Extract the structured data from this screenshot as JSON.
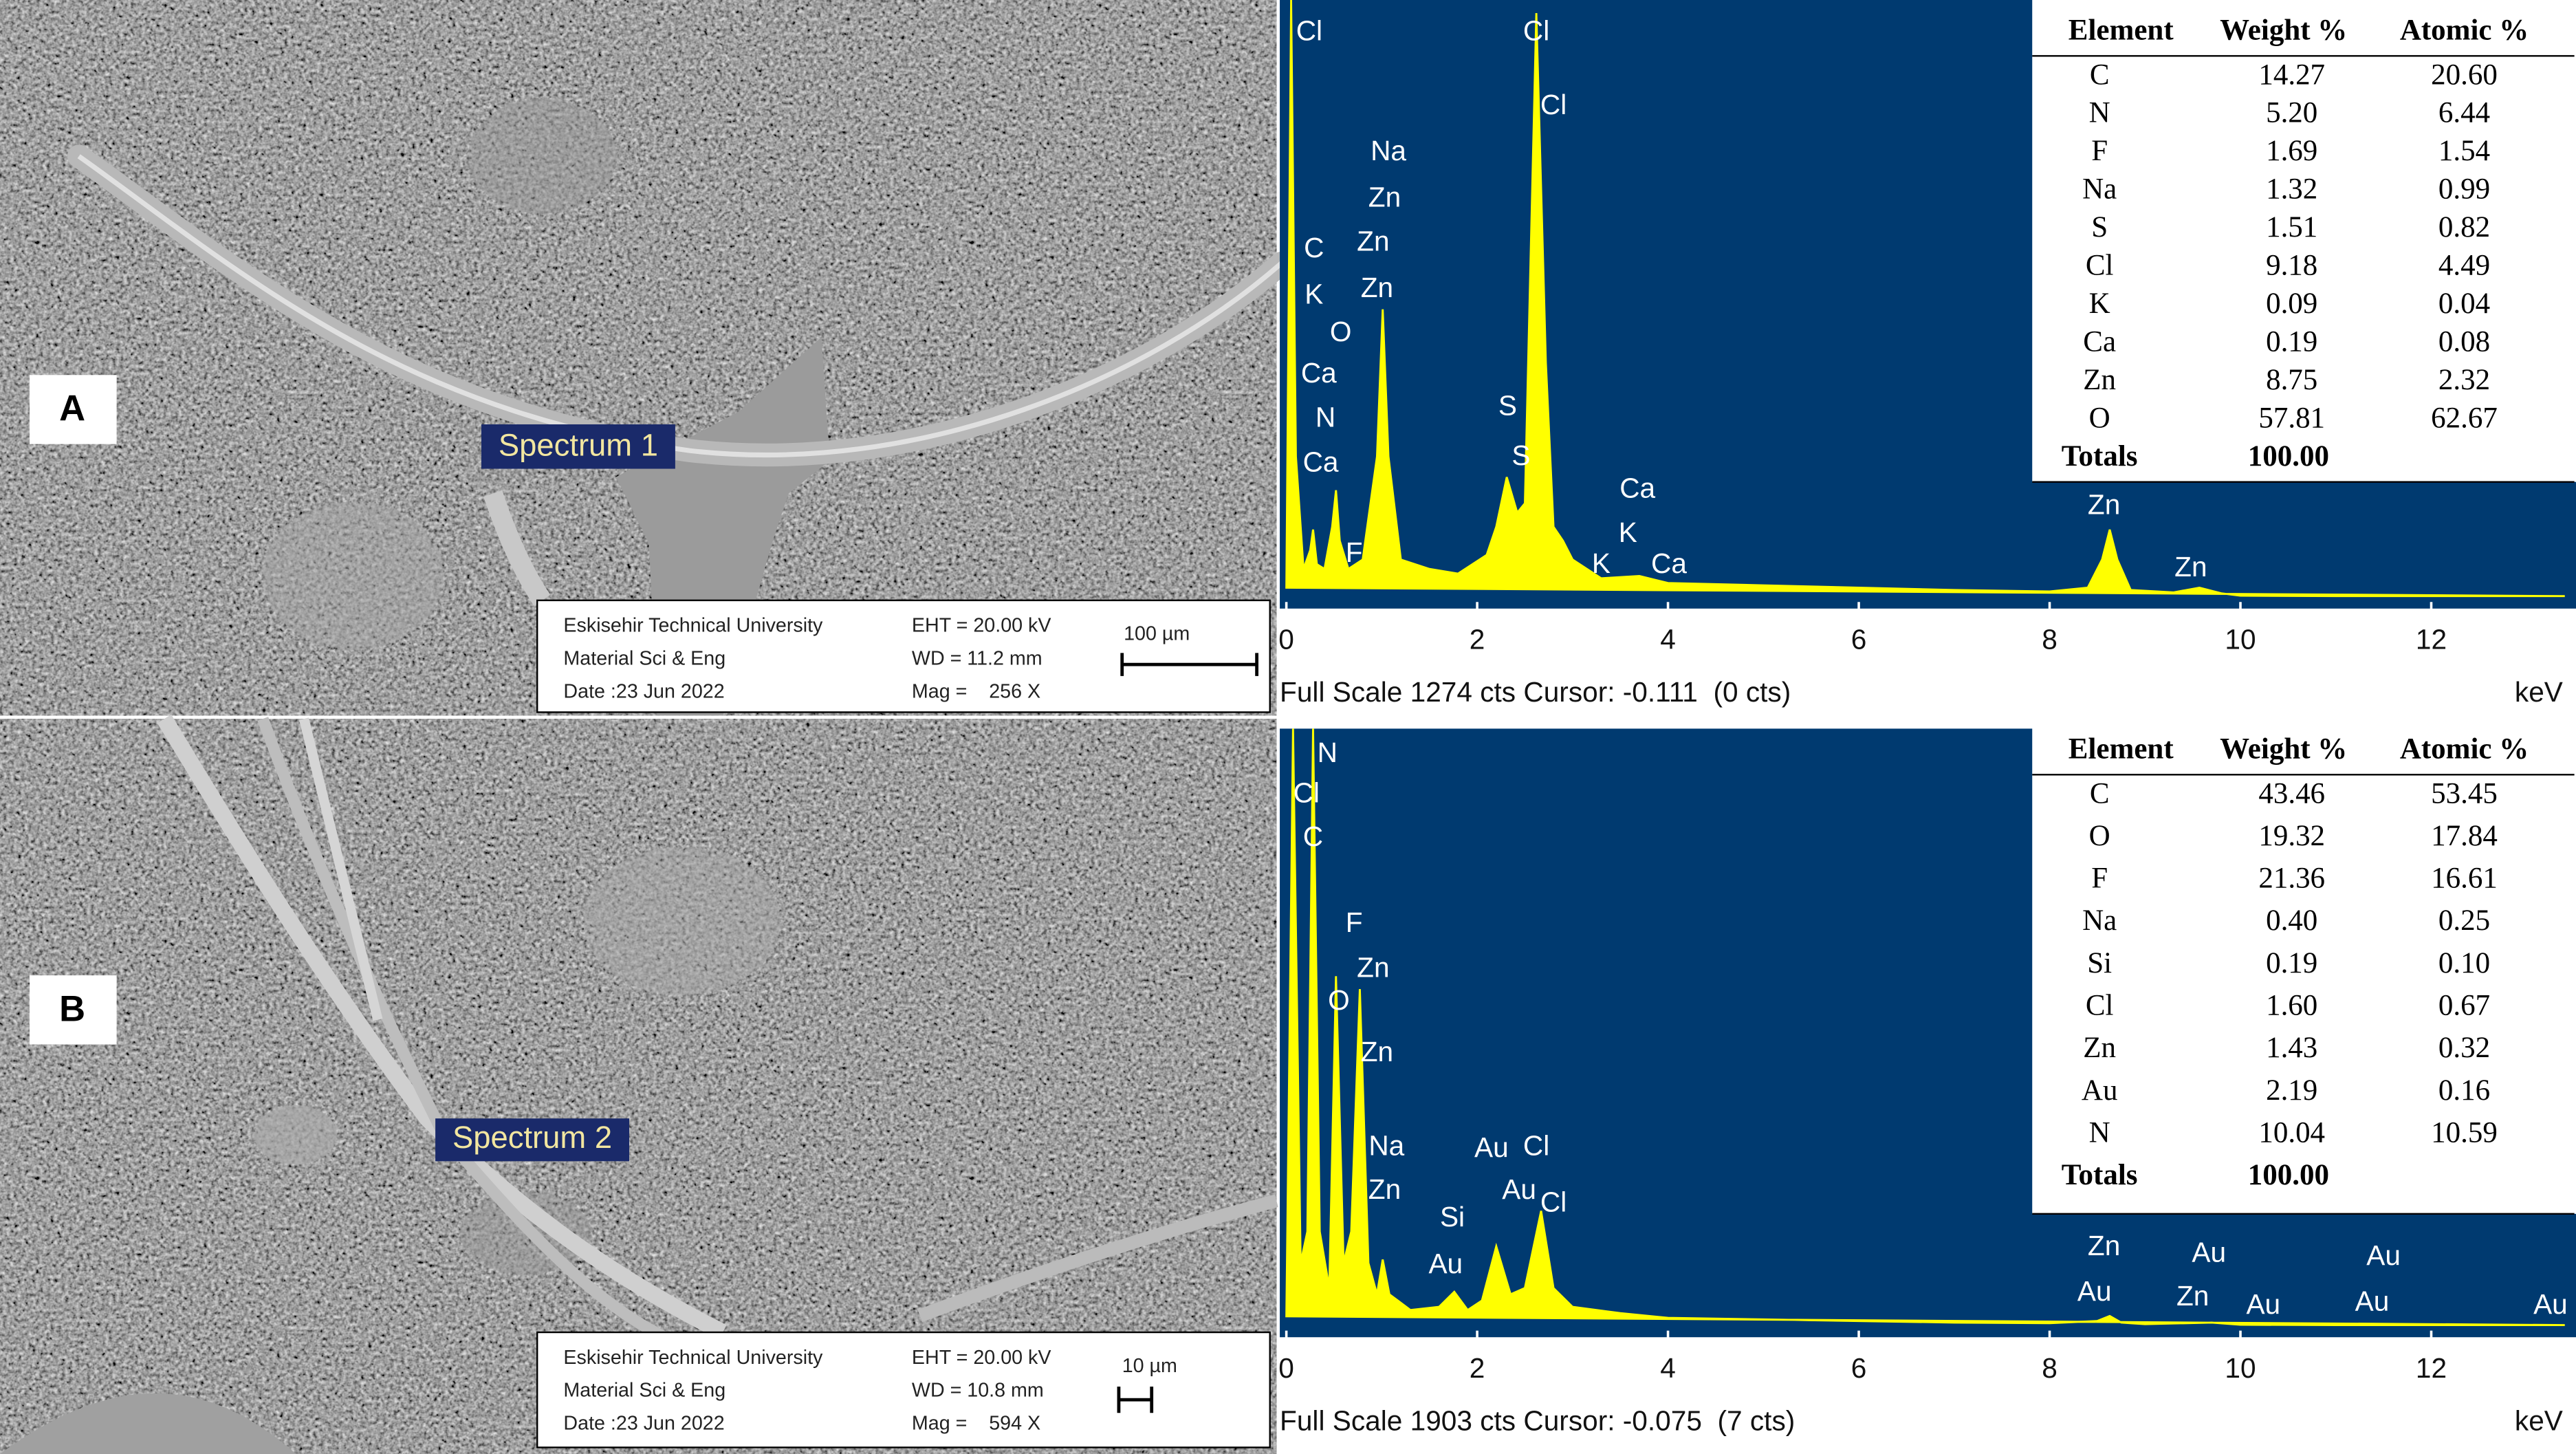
{
  "chart_data": [
    {
      "type": "area",
      "color": "#ffff00",
      "background": "#003a70",
      "x": [
        0,
        0.05,
        0.1,
        0.18,
        0.25,
        0.28,
        0.32,
        0.4,
        0.48,
        0.52,
        0.56,
        0.65,
        0.8,
        0.95,
        1.01,
        1.07,
        1.2,
        1.5,
        1.8,
        2.1,
        2.2,
        2.31,
        2.42,
        2.5,
        2.62,
        2.72,
        2.8,
        2.9,
        3.0,
        3.3,
        3.7,
        4.0,
        5,
        6,
        7,
        8,
        8.4,
        8.55,
        8.63,
        8.71,
        8.85,
        9.3,
        9.57,
        9.8,
        10,
        11,
        12,
        13.4
      ],
      "values": [
        20,
        1274,
        300,
        60,
        100,
        144,
        70,
        60,
        150,
        228,
        120,
        60,
        80,
        300,
        614,
        300,
        80,
        60,
        50,
        90,
        150,
        256,
        180,
        200,
        1246,
        500,
        150,
        120,
        80,
        40,
        45,
        30,
        25,
        20,
        15,
        12,
        20,
        80,
        144,
        80,
        15,
        10,
        20,
        8,
        3,
        2,
        2,
        2
      ],
      "xlim": [
        0,
        13.5
      ],
      "xticks": [
        0,
        2,
        4,
        6,
        8,
        10,
        12
      ],
      "ylim": [
        0,
        1274
      ],
      "x_unit": "keV",
      "status": "Full Scale 1274 cts Cursor: -0.111  (0 cts)",
      "annotations": [
        {
          "text": "Cl",
          "x": 0.24,
          "y": 1204
        },
        {
          "text": "Cl",
          "x": 2.62,
          "y": 1204
        },
        {
          "text": "Cl",
          "x": 2.8,
          "y": 1046
        },
        {
          "text": "Na",
          "x": 1.07,
          "y": 948
        },
        {
          "text": "Zn",
          "x": 1.03,
          "y": 849
        },
        {
          "text": "C",
          "x": 0.29,
          "y": 741
        },
        {
          "text": "Zn",
          "x": 0.91,
          "y": 755
        },
        {
          "text": "K",
          "x": 0.29,
          "y": 642
        },
        {
          "text": "Zn",
          "x": 0.95,
          "y": 656
        },
        {
          "text": "O",
          "x": 0.57,
          "y": 562
        },
        {
          "text": "Ca",
          "x": 0.34,
          "y": 474
        },
        {
          "text": "N",
          "x": 0.41,
          "y": 379
        },
        {
          "text": "Ca",
          "x": 0.36,
          "y": 284
        },
        {
          "text": "F",
          "x": 0.71,
          "y": 91
        },
        {
          "text": "S",
          "x": 2.32,
          "y": 404
        },
        {
          "text": "S",
          "x": 2.46,
          "y": 298
        },
        {
          "text": "Ca",
          "x": 3.68,
          "y": 228
        },
        {
          "text": "K",
          "x": 3.58,
          "y": 133
        },
        {
          "text": "K",
          "x": 3.3,
          "y": 67
        },
        {
          "text": "Ca",
          "x": 4.01,
          "y": 67
        },
        {
          "text": "Zn",
          "x": 8.57,
          "y": 193
        },
        {
          "text": "Zn",
          "x": 9.48,
          "y": 60
        }
      ]
    },
    {
      "type": "area",
      "color": "#ffff00",
      "background": "#003a70",
      "x": [
        0,
        0.07,
        0.15,
        0.22,
        0.28,
        0.35,
        0.45,
        0.52,
        0.6,
        0.68,
        0.77,
        0.86,
        0.95,
        1.01,
        1.08,
        1.3,
        1.6,
        1.76,
        1.9,
        2.05,
        2.2,
        2.35,
        2.5,
        2.67,
        2.8,
        3.0,
        3.5,
        4,
        5,
        6,
        7,
        8,
        8.5,
        8.63,
        8.75,
        9,
        9.7,
        10,
        11,
        12,
        13.4
      ],
      "values": [
        30,
        1903,
        200,
        300,
        1903,
        300,
        120,
        1114,
        200,
        300,
        1073,
        200,
        100,
        211,
        100,
        50,
        60,
        108,
        50,
        80,
        253,
        100,
        120,
        366,
        120,
        60,
        40,
        25,
        20,
        15,
        10,
        8,
        15,
        31,
        10,
        5,
        10,
        3,
        2,
        2,
        2
      ],
      "xlim": [
        0,
        13.5
      ],
      "xticks": [
        0,
        2,
        4,
        6,
        8,
        10,
        12
      ],
      "ylim": [
        0,
        1903
      ],
      "x_unit": "keV",
      "status": "Full Scale 1903 cts Cursor: -0.075  (7 cts)",
      "annotations": [
        {
          "text": "N",
          "x": 0.43,
          "y": 1820
        },
        {
          "text": "Cl",
          "x": 0.21,
          "y": 1692
        },
        {
          "text": "C",
          "x": 0.28,
          "y": 1552
        },
        {
          "text": "F",
          "x": 0.71,
          "y": 1279
        },
        {
          "text": "Zn",
          "x": 0.91,
          "y": 1135
        },
        {
          "text": "O",
          "x": 0.55,
          "y": 1031
        },
        {
          "text": "Zn",
          "x": 0.95,
          "y": 866
        },
        {
          "text": "Na",
          "x": 1.05,
          "y": 567
        },
        {
          "text": "Zn",
          "x": 1.03,
          "y": 428
        },
        {
          "text": "Si",
          "x": 1.74,
          "y": 340
        },
        {
          "text": "Au",
          "x": 1.67,
          "y": 191
        },
        {
          "text": "Au",
          "x": 2.15,
          "y": 562
        },
        {
          "text": "Cl",
          "x": 2.62,
          "y": 567
        },
        {
          "text": "Au",
          "x": 2.44,
          "y": 428
        },
        {
          "text": "Cl",
          "x": 2.8,
          "y": 387
        },
        {
          "text": "Zn",
          "x": 8.57,
          "y": 248
        },
        {
          "text": "Au",
          "x": 8.47,
          "y": 103
        },
        {
          "text": "Au",
          "x": 9.67,
          "y": 227
        },
        {
          "text": "Zn",
          "x": 9.5,
          "y": 88
        },
        {
          "text": "Au",
          "x": 10.24,
          "y": 62
        },
        {
          "text": "Au",
          "x": 11.5,
          "y": 217
        },
        {
          "text": "Au",
          "x": 11.38,
          "y": 72
        },
        {
          "text": "Au",
          "x": 13.25,
          "y": 62
        }
      ]
    }
  ],
  "panels": [
    {
      "label": "A",
      "sem": {
        "spectrum_label": "Spectrum 1",
        "info": [
          "Eskisehir Technical University",
          "Material Sci & Eng",
          "Date :23 Jun 2022"
        ],
        "params": [
          "EHT = 20.00 kV",
          "WD = 11.2 mm",
          "Mag =    256 X"
        ],
        "scale_bar": "100 µm"
      },
      "table": {
        "columns": [
          "Element",
          "Weight %",
          "Atomic %"
        ],
        "rows": [
          [
            "C",
            "14.27",
            "20.60"
          ],
          [
            "N",
            "5.20",
            "6.44"
          ],
          [
            "F",
            "1.69",
            "1.54"
          ],
          [
            "Na",
            "1.32",
            "0.99"
          ],
          [
            "S",
            "1.51",
            "0.82"
          ],
          [
            "Cl",
            "9.18",
            "4.49"
          ],
          [
            "K",
            "0.09",
            "0.04"
          ],
          [
            "Ca",
            "0.19",
            "0.08"
          ],
          [
            "Zn",
            "8.75",
            "2.32"
          ],
          [
            "O",
            "57.81",
            "62.67"
          ]
        ],
        "totals": [
          "Totals",
          "100.00"
        ]
      }
    },
    {
      "label": "B",
      "sem": {
        "spectrum_label": "Spectrum 2",
        "info": [
          "Eskisehir Technical University",
          "Material Sci & Eng",
          "Date :23 Jun 2022"
        ],
        "params": [
          "EHT = 20.00 kV",
          "WD = 10.8 mm",
          "Mag =    594 X"
        ],
        "scale_bar": "10 µm"
      },
      "table": {
        "columns": [
          "Element",
          "Weight %",
          "Atomic %"
        ],
        "rows": [
          [
            "C",
            "43.46",
            "53.45"
          ],
          [
            "O",
            "19.32",
            "17.84"
          ],
          [
            "F",
            "21.36",
            "16.61"
          ],
          [
            "Na",
            "0.40",
            "0.25"
          ],
          [
            "Si",
            "0.19",
            "0.10"
          ],
          [
            "Cl",
            "1.60",
            "0.67"
          ],
          [
            "Zn",
            "1.43",
            "0.32"
          ],
          [
            "Au",
            "2.19",
            "0.16"
          ],
          [
            "N",
            "10.04",
            "10.59"
          ]
        ],
        "totals": [
          "Totals",
          "100.00"
        ]
      }
    }
  ]
}
